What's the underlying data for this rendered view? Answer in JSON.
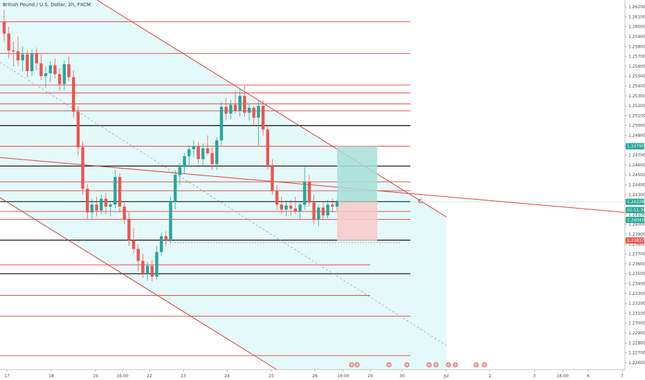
{
  "title": "British Pound / U.S. Dollar, 2h, FXCM",
  "chart_data": {
    "type": "candlestick",
    "symbol": "British Pound / U.S. Dollar",
    "interval": "2h",
    "source": "FXCM",
    "ylim": [
      1.2255,
      1.2625
    ],
    "price_ticks": [
      "1.26200",
      "1.26100",
      "1.26000",
      "1.25900",
      "1.25800",
      "1.25700",
      "1.25600",
      "1.25500",
      "1.25400",
      "1.25300",
      "1.25200",
      "1.25100",
      "1.25000",
      "1.24900",
      "1.24700",
      "1.24600",
      "1.24500",
      "1.24400",
      "1.24300",
      "1.24100",
      "1.24000",
      "1.23900",
      "1.23800",
      "1.23700",
      "1.23600",
      "1.23500",
      "1.23400",
      "1.23300",
      "1.23200",
      "1.23100",
      "1.23000",
      "1.22900",
      "1.22800",
      "1.22700",
      "1.22600"
    ],
    "x_ticks": [
      "17",
      "18",
      "19",
      "16:00",
      "22",
      "23",
      "24",
      "25",
      "26",
      "16:00",
      "29",
      "30",
      "Jul",
      "2",
      "3",
      "16:00",
      "6",
      "7"
    ],
    "price_tags": [
      {
        "label": "1.24790",
        "value": 1.2479,
        "color": "#26a69a"
      },
      {
        "label": "1.24228",
        "value": 1.24228,
        "color": "#26a69a"
      },
      {
        "label": "01:51:36",
        "value": 1.24145,
        "color": "#26a69a"
      },
      {
        "label": "1.24045",
        "value": 1.24045,
        "color": "#26a69a"
      },
      {
        "label": "1.23837",
        "value": 1.23837,
        "color": "#ef5350"
      }
    ],
    "horizontal_lines": [
      {
        "value": 1.2605,
        "color": "#e53935"
      },
      {
        "value": 1.2573,
        "color": "#e53935"
      },
      {
        "value": 1.2541,
        "color": "#e53935"
      },
      {
        "value": 1.2533,
        "color": "#e53935"
      },
      {
        "value": 1.2522,
        "color": "#e53935"
      },
      {
        "value": 1.2515,
        "color": "#e53935"
      },
      {
        "value": 1.2479,
        "color": "#e53935"
      },
      {
        "value": 1.2443,
        "color": "#e53935"
      },
      {
        "value": 1.2434,
        "color": "#e53935"
      },
      {
        "value": 1.2413,
        "color": "#e53935"
      },
      {
        "value": 1.2405,
        "color": "#e53935"
      },
      {
        "value": 1.2359,
        "color": "#e53935"
      },
      {
        "value": 1.2328,
        "color": "#e53935"
      },
      {
        "value": 1.2307,
        "color": "#e53935"
      },
      {
        "value": 1.2267,
        "color": "#e53935"
      },
      {
        "value": 1.25,
        "color": "#000000"
      },
      {
        "value": 1.2459,
        "color": "#000000"
      },
      {
        "value": 1.2423,
        "color": "#000000"
      },
      {
        "value": 1.2384,
        "color": "#000000"
      },
      {
        "value": 1.235,
        "color": "#000000"
      }
    ],
    "candles": [
      [
        1.2605,
        1.2617,
        1.2584,
        1.2593
      ],
      [
        1.2593,
        1.26,
        1.2568,
        1.2576
      ],
      [
        1.2576,
        1.2585,
        1.256,
        1.2575
      ],
      [
        1.2575,
        1.259,
        1.256,
        1.2566
      ],
      [
        1.2566,
        1.258,
        1.2555,
        1.2572
      ],
      [
        1.2572,
        1.2576,
        1.2549,
        1.2555
      ],
      [
        1.2555,
        1.2577,
        1.255,
        1.2573
      ],
      [
        1.2573,
        1.2579,
        1.2556,
        1.2563
      ],
      [
        1.2563,
        1.2572,
        1.2546,
        1.255
      ],
      [
        1.255,
        1.256,
        1.2538,
        1.2553
      ],
      [
        1.2553,
        1.2565,
        1.2544,
        1.2561
      ],
      [
        1.2561,
        1.2568,
        1.2548,
        1.2552
      ],
      [
        1.2552,
        1.2558,
        1.2535,
        1.2542
      ],
      [
        1.2542,
        1.2566,
        1.2536,
        1.2562
      ],
      [
        1.2562,
        1.257,
        1.2545,
        1.2549
      ],
      [
        1.2549,
        1.2556,
        1.2508,
        1.2514
      ],
      [
        1.2514,
        1.252,
        1.247,
        1.2478
      ],
      [
        1.2478,
        1.2484,
        1.243,
        1.2436
      ],
      [
        1.2436,
        1.2441,
        1.2405,
        1.2412
      ],
      [
        1.2412,
        1.2426,
        1.2405,
        1.242
      ],
      [
        1.242,
        1.2428,
        1.2408,
        1.2414
      ],
      [
        1.2414,
        1.243,
        1.241,
        1.2426
      ],
      [
        1.2426,
        1.2432,
        1.241,
        1.2418
      ],
      [
        1.2418,
        1.2424,
        1.2408,
        1.242
      ],
      [
        1.242,
        1.2455,
        1.2416,
        1.2448
      ],
      [
        1.2448,
        1.2452,
        1.2412,
        1.2418
      ],
      [
        1.2418,
        1.2422,
        1.24,
        1.2405
      ],
      [
        1.2405,
        1.2412,
        1.2378,
        1.2384
      ],
      [
        1.2384,
        1.2396,
        1.237,
        1.2375
      ],
      [
        1.2375,
        1.238,
        1.2352,
        1.2363
      ],
      [
        1.2363,
        1.237,
        1.2346,
        1.235
      ],
      [
        1.235,
        1.2362,
        1.2343,
        1.2358
      ],
      [
        1.2358,
        1.2364,
        1.2342,
        1.2347
      ],
      [
        1.2347,
        1.2378,
        1.2344,
        1.2372
      ],
      [
        1.2372,
        1.2392,
        1.2368,
        1.2388
      ],
      [
        1.2388,
        1.2393,
        1.2378,
        1.2383
      ],
      [
        1.2383,
        1.2428,
        1.238,
        1.2423
      ],
      [
        1.2423,
        1.2455,
        1.2415,
        1.245
      ],
      [
        1.245,
        1.2462,
        1.244,
        1.2458
      ],
      [
        1.2458,
        1.2472,
        1.2451,
        1.2469
      ],
      [
        1.2469,
        1.248,
        1.2458,
        1.2476
      ],
      [
        1.2476,
        1.2485,
        1.2468,
        1.2479
      ],
      [
        1.2479,
        1.2483,
        1.2462,
        1.2466
      ],
      [
        1.2466,
        1.2482,
        1.246,
        1.2477
      ],
      [
        1.2477,
        1.249,
        1.247,
        1.2472
      ],
      [
        1.2472,
        1.2478,
        1.2455,
        1.2461
      ],
      [
        1.2461,
        1.2488,
        1.2455,
        1.2485
      ],
      [
        1.2485,
        1.2524,
        1.248,
        1.2519
      ],
      [
        1.2519,
        1.2528,
        1.2505,
        1.2512
      ],
      [
        1.2512,
        1.2526,
        1.2506,
        1.2521
      ],
      [
        1.2521,
        1.2535,
        1.2512,
        1.2515
      ],
      [
        1.2515,
        1.2538,
        1.2509,
        1.253
      ],
      [
        1.253,
        1.254,
        1.2509,
        1.2513
      ],
      [
        1.2513,
        1.2522,
        1.2505,
        1.2518
      ],
      [
        1.2518,
        1.252,
        1.25,
        1.2508
      ],
      [
        1.2508,
        1.2525,
        1.248,
        1.252
      ],
      [
        1.252,
        1.2526,
        1.249,
        1.2496
      ],
      [
        1.2496,
        1.25,
        1.2455,
        1.246
      ],
      [
        1.246,
        1.2466,
        1.243,
        1.2434
      ],
      [
        1.2434,
        1.244,
        1.2415,
        1.242
      ],
      [
        1.242,
        1.2428,
        1.241,
        1.2415
      ],
      [
        1.2415,
        1.2424,
        1.2408,
        1.2419
      ],
      [
        1.2419,
        1.2425,
        1.2409,
        1.2416
      ],
      [
        1.2416,
        1.2428,
        1.241,
        1.2413
      ],
      [
        1.2413,
        1.2422,
        1.2405,
        1.242
      ],
      [
        1.242,
        1.2458,
        1.2415,
        1.2443
      ],
      [
        1.2443,
        1.245,
        1.2418,
        1.2422
      ],
      [
        1.2422,
        1.243,
        1.24,
        1.2405
      ],
      [
        1.2405,
        1.242,
        1.2398,
        1.2417
      ],
      [
        1.2417,
        1.2423,
        1.2404,
        1.2409
      ],
      [
        1.2409,
        1.2425,
        1.2406,
        1.242
      ],
      [
        1.242,
        1.2426,
        1.2412,
        1.2418
      ],
      [
        1.2418,
        1.2425,
        1.2414,
        1.2423
      ]
    ],
    "position": {
      "type": "long",
      "entry": 1.2423,
      "target": 1.2479,
      "stop": 1.23837
    },
    "annotation": "C"
  }
}
